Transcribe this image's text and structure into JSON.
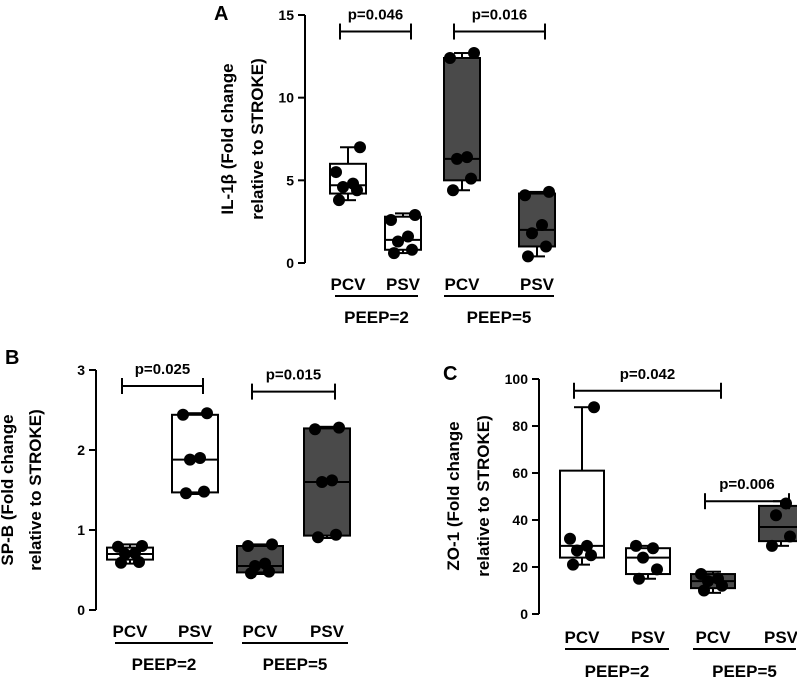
{
  "colors": {
    "pcv_fill": "#ffffff",
    "peep5_fill": "#4a4a4a",
    "stroke": "#000000",
    "point": "#000000"
  },
  "chart_data": [
    {
      "id": "A",
      "panel_label": "A",
      "type": "boxplot",
      "ylabel_lines": [
        "IL-1β (Fold change",
        "relative to STROKE)"
      ],
      "ylim": [
        0,
        15
      ],
      "yticks": [
        0,
        5,
        10,
        15
      ],
      "tick_labels": [
        "0",
        "5",
        "10",
        "15"
      ],
      "categories": [
        "PCV",
        "PSV",
        "PCV",
        "PSV"
      ],
      "groups": [
        {
          "label": "PEEP=2",
          "members": [
            0,
            1
          ]
        },
        {
          "label": "PEEP=5",
          "members": [
            2,
            3
          ]
        }
      ],
      "boxes": [
        {
          "label": "PCV",
          "group": "PEEP=2",
          "fill": "white",
          "min": 3.8,
          "q1": 4.2,
          "median": 4.7,
          "q3": 6.0,
          "max": 7.0,
          "points": [
            3.8,
            4.4,
            4.6,
            4.8,
            5.5,
            7.0
          ]
        },
        {
          "label": "PSV",
          "group": "PEEP=2",
          "fill": "white",
          "min": 0.6,
          "q1": 0.8,
          "median": 1.4,
          "q3": 2.8,
          "max": 3.0,
          "points": [
            0.6,
            0.8,
            1.3,
            1.6,
            2.6,
            2.9
          ]
        },
        {
          "label": "PCV",
          "group": "PEEP=5",
          "fill": "gray",
          "min": 4.4,
          "q1": 5.0,
          "median": 6.3,
          "q3": 12.4,
          "max": 12.7,
          "points": [
            4.4,
            5.1,
            6.3,
            6.4,
            12.4,
            12.7
          ]
        },
        {
          "label": "PSV",
          "group": "PEEP=5",
          "fill": "gray",
          "min": 0.4,
          "q1": 1.0,
          "median": 2.0,
          "q3": 4.2,
          "max": 4.3,
          "points": [
            0.4,
            1.0,
            1.8,
            2.3,
            4.1,
            4.3
          ]
        }
      ],
      "brackets": [
        {
          "from": 0,
          "to": 1,
          "y": 14.0,
          "text": "p=0.046"
        },
        {
          "from": 2,
          "to": 3,
          "y": 14.0,
          "text": "p=0.016"
        }
      ]
    },
    {
      "id": "B",
      "panel_label": "B",
      "type": "boxplot",
      "ylabel_lines": [
        "SP-B (Fold change",
        "relative to STROKE)"
      ],
      "ylim": [
        0,
        3
      ],
      "yticks": [
        0,
        1,
        2,
        3
      ],
      "tick_labels": [
        "0",
        "1",
        "2",
        "3"
      ],
      "categories": [
        "PCV",
        "PSV",
        "PCV",
        "PSV"
      ],
      "groups": [
        {
          "label": "PEEP=2",
          "members": [
            0,
            1
          ]
        },
        {
          "label": "PEEP=5",
          "members": [
            2,
            3
          ]
        }
      ],
      "boxes": [
        {
          "label": "PCV",
          "group": "PEEP=2",
          "fill": "white",
          "min": 0.58,
          "q1": 0.63,
          "median": 0.7,
          "q3": 0.78,
          "max": 0.82,
          "points": [
            0.59,
            0.6,
            0.7,
            0.71,
            0.79,
            0.8
          ]
        },
        {
          "label": "PSV",
          "group": "PEEP=2",
          "fill": "white",
          "min": 1.45,
          "q1": 1.47,
          "median": 1.88,
          "q3": 2.44,
          "max": 2.46,
          "points": [
            1.46,
            1.48,
            1.88,
            1.9,
            2.44,
            2.46
          ]
        },
        {
          "label": "PCV",
          "group": "PEEP=5",
          "fill": "gray",
          "min": 0.45,
          "q1": 0.47,
          "median": 0.55,
          "q3": 0.8,
          "max": 0.82,
          "points": [
            0.46,
            0.48,
            0.55,
            0.58,
            0.8,
            0.82
          ]
        },
        {
          "label": "PSV",
          "group": "PEEP=5",
          "fill": "gray",
          "min": 0.9,
          "q1": 0.93,
          "median": 1.6,
          "q3": 2.27,
          "max": 2.29,
          "points": [
            0.91,
            0.94,
            1.6,
            1.62,
            2.26,
            2.28
          ]
        }
      ],
      "brackets": [
        {
          "from": 0,
          "to": 1,
          "y": 2.8,
          "text": "p=0.025"
        },
        {
          "from": 2,
          "to": 3,
          "y": 2.73,
          "text": "p=0.015"
        }
      ]
    },
    {
      "id": "C",
      "panel_label": "C",
      "type": "boxplot",
      "ylabel_lines": [
        "ZO-1 (Fold change",
        "relative to STROKE)"
      ],
      "ylim": [
        0,
        100
      ],
      "yticks": [
        0,
        20,
        40,
        60,
        80,
        100
      ],
      "tick_labels": [
        "0",
        "20",
        "40",
        "60",
        "80",
        "100"
      ],
      "categories": [
        "PCV",
        "PSV",
        "PCV",
        "PSV"
      ],
      "groups": [
        {
          "label": "PEEP=2",
          "members": [
            0,
            1
          ]
        },
        {
          "label": "PEEP=5",
          "members": [
            2,
            3
          ]
        }
      ],
      "boxes": [
        {
          "label": "PCV",
          "group": "PEEP=2",
          "fill": "white",
          "min": 21,
          "q1": 24,
          "median": 29,
          "q3": 61,
          "max": 88,
          "points": [
            21,
            25,
            27,
            29,
            32,
            88
          ]
        },
        {
          "label": "PSV",
          "group": "PEEP=2",
          "fill": "white",
          "min": 15,
          "q1": 17,
          "median": 24,
          "q3": 28,
          "max": 29,
          "points": [
            15,
            19,
            24,
            28,
            29
          ]
        },
        {
          "label": "PCV",
          "group": "PEEP=5",
          "fill": "gray",
          "min": 9,
          "q1": 11,
          "median": 14,
          "q3": 17,
          "max": 18,
          "points": [
            10,
            12,
            14,
            15,
            17
          ]
        },
        {
          "label": "PSV",
          "group": "PEEP=5",
          "fill": "gray",
          "min": 29,
          "q1": 31,
          "median": 37,
          "q3": 46,
          "max": 48,
          "points": [
            29,
            33,
            42,
            47
          ]
        }
      ],
      "brackets": [
        {
          "from": 0,
          "to": 2,
          "y": 95,
          "text": "p=0.042"
        },
        {
          "from": 2,
          "to": 3,
          "y": 48,
          "text": "p=0.006"
        }
      ]
    }
  ]
}
